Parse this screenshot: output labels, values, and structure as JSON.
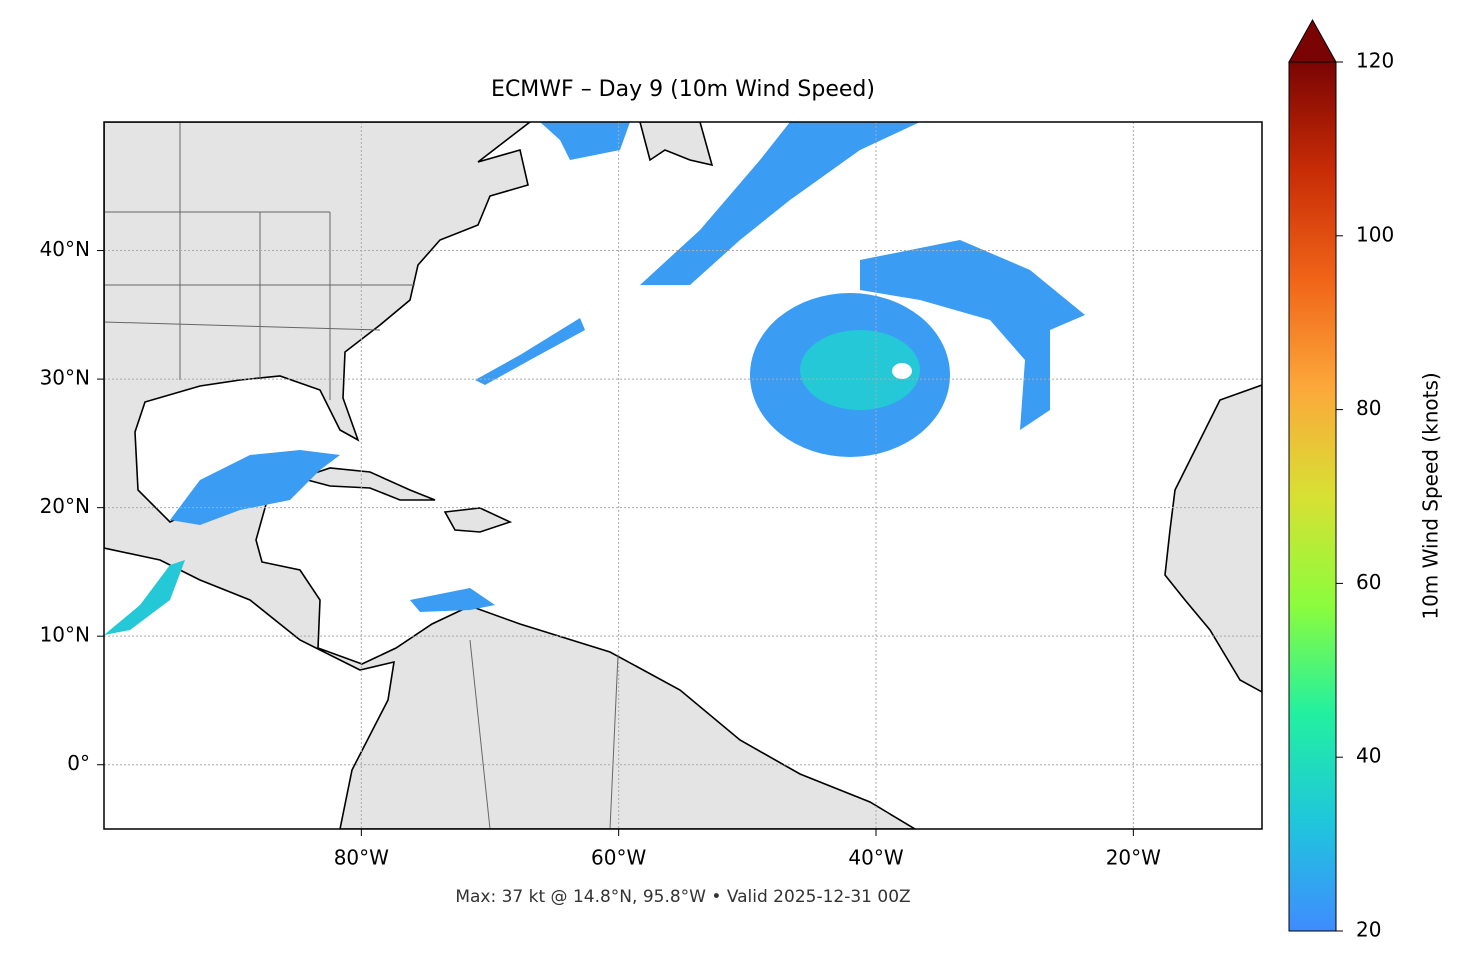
{
  "chart_data": {
    "type": "map",
    "title": "ECMWF – Day 9 (10m Wind Speed)",
    "footnote": "Max: 37 kt @ 14.8°N, 95.8°W • Valid 2025-12-31 00Z",
    "xlim": [
      -100,
      -10
    ],
    "ylim": [
      -5,
      50
    ],
    "xticks": [
      {
        "value": -80,
        "label": "80°W"
      },
      {
        "value": -60,
        "label": "60°W"
      },
      {
        "value": -40,
        "label": "40°W"
      },
      {
        "value": -20,
        "label": "20°W"
      }
    ],
    "yticks": [
      {
        "value": 0,
        "label": "0°"
      },
      {
        "value": 10,
        "label": "10°N"
      },
      {
        "value": 20,
        "label": "20°N"
      },
      {
        "value": 30,
        "label": "30°N"
      },
      {
        "value": 40,
        "label": "40°N"
      }
    ],
    "grid": true,
    "colorbar": {
      "label": "10m Wind Speed (knots)",
      "lim": [
        20,
        120
      ],
      "ticks": [
        20,
        40,
        60,
        80,
        100,
        120
      ],
      "colormap": [
        "#3f8cff",
        "#1fc6dc",
        "#22f0a0",
        "#8cfc3c",
        "#d8e034",
        "#fca83a",
        "#f06418",
        "#c82c06",
        "#7a0403"
      ]
    }
  }
}
